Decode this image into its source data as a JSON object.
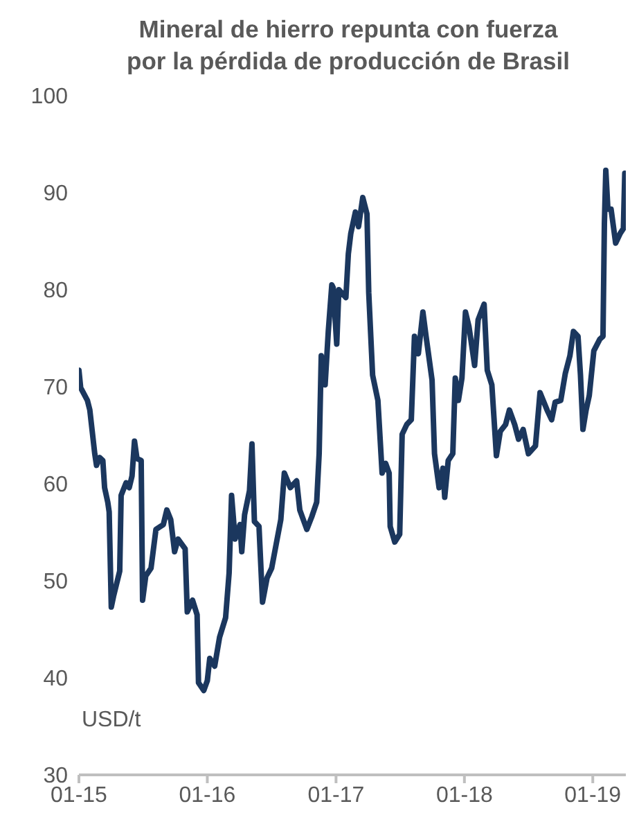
{
  "chart_data": {
    "type": "line",
    "title": "Mineral de hierro repunta con fuerza\npor la pérdida de producción de Brasil",
    "ylabel": "USD/t",
    "x": [
      "2015-01-01",
      "2015-01-06",
      "2015-01-25",
      "2015-02-01",
      "2015-02-15",
      "2015-02-20",
      "2015-03-01",
      "2015-03-10",
      "2015-03-15",
      "2015-03-24",
      "2015-03-28",
      "2015-04-03",
      "2015-04-10",
      "2015-04-27",
      "2015-05-01",
      "2015-05-15",
      "2015-05-24",
      "2015-06-01",
      "2015-06-08",
      "2015-06-15",
      "2015-06-27",
      "2015-07-01",
      "2015-07-10",
      "2015-07-25",
      "2015-08-08",
      "2015-08-29",
      "2015-09-08",
      "2015-09-19",
      "2015-09-30",
      "2015-10-10",
      "2015-10-30",
      "2015-11-05",
      "2015-11-20",
      "2015-12-03",
      "2015-12-07",
      "2015-12-22",
      "2016-01-01",
      "2016-01-08",
      "2016-01-22",
      "2016-02-05",
      "2016-02-22",
      "2016-03-03",
      "2016-03-10",
      "2016-03-20",
      "2016-04-03",
      "2016-04-08",
      "2016-04-16",
      "2016-04-30",
      "2016-05-07",
      "2016-05-14",
      "2016-05-27",
      "2016-06-06",
      "2016-06-19",
      "2016-07-02",
      "2016-07-15",
      "2016-07-28",
      "2016-08-07",
      "2016-08-24",
      "2016-09-11",
      "2016-09-20",
      "2016-10-10",
      "2016-10-24",
      "2016-11-07",
      "2016-11-14",
      "2016-11-20",
      "2016-12-01",
      "2016-12-10",
      "2016-12-20",
      "2016-12-24",
      "2017-01-03",
      "2017-01-09",
      "2017-01-29",
      "2017-02-05",
      "2017-02-12",
      "2017-02-25",
      "2017-03-06",
      "2017-03-18",
      "2017-03-30",
      "2017-04-04",
      "2017-04-15",
      "2017-04-30",
      "2017-05-12",
      "2017-05-22",
      "2017-06-01",
      "2017-06-04",
      "2017-06-17",
      "2017-07-01",
      "2017-07-08",
      "2017-07-21",
      "2017-08-03",
      "2017-08-12",
      "2017-08-23",
      "2017-09-05",
      "2017-09-14",
      "2017-10-01",
      "2017-10-08",
      "2017-10-21",
      "2017-11-01",
      "2017-11-06",
      "2017-11-16",
      "2017-11-29",
      "2017-12-06",
      "2017-12-15",
      "2017-12-25",
      "2018-01-04",
      "2018-01-14",
      "2018-01-30",
      "2018-02-09",
      "2018-02-26",
      "2018-03-07",
      "2018-03-20",
      "2018-04-02",
      "2018-04-13",
      "2018-04-28",
      "2018-05-09",
      "2018-05-24",
      "2018-06-04",
      "2018-06-17",
      "2018-07-02",
      "2018-07-22",
      "2018-08-04",
      "2018-08-24",
      "2018-09-06",
      "2018-09-16",
      "2018-10-02",
      "2018-10-15",
      "2018-10-28",
      "2018-11-07",
      "2018-11-20",
      "2018-11-27",
      "2018-12-04",
      "2018-12-13",
      "2018-12-22",
      "2019-01-04",
      "2019-01-21",
      "2019-01-30",
      "2019-02-03",
      "2019-02-07",
      "2019-02-13",
      "2019-02-22",
      "2019-03-07",
      "2019-03-20",
      "2019-03-29",
      "2019-04-02"
    ],
    "series": [
      {
        "color": "#1b375e",
        "values": [
          71.7,
          69.9,
          68.6,
          67.6,
          63.1,
          61.9,
          62.7,
          62.4,
          59.6,
          58.1,
          57.1,
          47.3,
          48.5,
          51,
          58.8,
          60.1,
          59.6,
          60.8,
          64.4,
          62.6,
          62.4,
          48,
          50.5,
          51.3,
          55.3,
          55.8,
          57.3,
          56.3,
          53,
          54.3,
          53.3,
          46.8,
          48,
          46.5,
          39.5,
          38.7,
          39.7,
          42,
          41.2,
          44.2,
          46.2,
          50.8,
          58.8,
          54.3,
          55.8,
          53,
          56.8,
          59.3,
          64.1,
          56.1,
          55.6,
          47.8,
          50.3,
          51.3,
          53.8,
          56.3,
          61.1,
          59.6,
          60.3,
          57.3,
          55.3,
          56.6,
          58.1,
          63.1,
          73.2,
          70.2,
          75.7,
          80.5,
          80.2,
          74.4,
          80,
          79.2,
          83.7,
          85.8,
          88,
          86.5,
          89.5,
          87.8,
          79.7,
          71.2,
          68.6,
          61.1,
          62.1,
          61.1,
          55.6,
          54,
          54.8,
          65.1,
          66.1,
          66.6,
          75.2,
          73.4,
          77.7,
          75.2,
          70.7,
          63.1,
          59.6,
          61.6,
          58.6,
          62.4,
          63.1,
          70.9,
          68.6,
          70.9,
          77.7,
          76.2,
          72.2,
          76.9,
          78.5,
          71.7,
          70.2,
          62.9,
          65.4,
          66.1,
          67.6,
          66.1,
          64.6,
          65.6,
          63.1,
          63.9,
          69.4,
          67.6,
          66.6,
          68.4,
          68.6,
          71.4,
          73.2,
          75.7,
          75.2,
          71.2,
          65.6,
          67.6,
          69.1,
          73.7,
          74.9,
          75.2,
          86.8,
          92.3,
          88.3,
          88.3,
          84.8,
          85.8,
          86.3,
          92
        ]
      }
    ],
    "xlim": [
      "2015-01-01",
      "2019-04-05"
    ],
    "xticks": [
      {
        "value": "2015-01-01",
        "label": "01-15"
      },
      {
        "value": "2016-01-01",
        "label": "01-16"
      },
      {
        "value": "2017-01-01",
        "label": "01-17"
      },
      {
        "value": "2018-01-01",
        "label": "01-18"
      },
      {
        "value": "2019-01-01",
        "label": "01-19"
      }
    ],
    "ylim": [
      30,
      100
    ],
    "yticks": [
      30,
      40,
      50,
      60,
      70,
      80,
      90,
      100
    ],
    "grid": false,
    "legend": false,
    "marker": "none",
    "line_style": "solid"
  }
}
